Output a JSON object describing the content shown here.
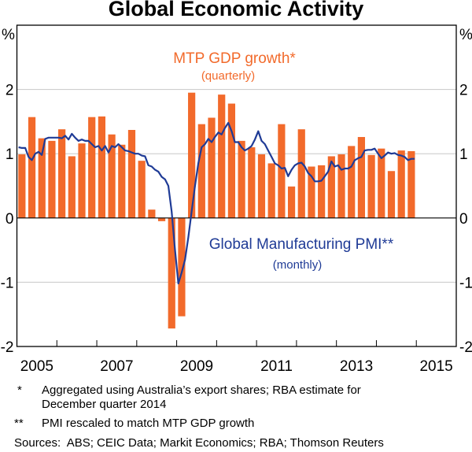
{
  "chart_data": {
    "type": "bar+line",
    "title": "Global Economic Activity",
    "ylabel_left": "%",
    "ylabel_right": "%",
    "ylim": [
      -2,
      3
    ],
    "yticks": [
      "-2",
      "-1",
      "0",
      "1",
      "2"
    ],
    "xlim": [
      2005,
      2016
    ],
    "xticklabels": [
      "2005",
      "2007",
      "2009",
      "2011",
      "2013",
      "2015"
    ],
    "grid": true,
    "colors": {
      "bars": "#F26A2B",
      "line": "#1F3B96",
      "annotation_bars": "#F26A2B",
      "annotation_line": "#1F3B96"
    },
    "series": [
      {
        "name": "MTP GDP growth*",
        "subtitle": "(quarterly)",
        "type": "bar",
        "frequency": "quarterly",
        "start": "2005 Q1",
        "values": [
          0.99,
          1.57,
          1.24,
          1.2,
          1.38,
          0.96,
          1.16,
          1.57,
          1.58,
          1.3,
          1.14,
          1.37,
          0.89,
          0.13,
          -0.05,
          -1.72,
          -1.53,
          1.95,
          1.46,
          1.56,
          1.92,
          1.78,
          1.2,
          1.1,
          0.99,
          0.85,
          1.46,
          0.49,
          1.38,
          0.8,
          0.82,
          0.96,
          0.99,
          1.12,
          1.26,
          0.98,
          1.08,
          0.73,
          1.05,
          1.04
        ]
      },
      {
        "name": "Global Manufacturing PMI**",
        "subtitle": "(monthly)",
        "type": "line",
        "frequency": "monthly",
        "start": "2005 Jan",
        "values": [
          1.1,
          1.09,
          1.09,
          0.95,
          0.9,
          1.0,
          1.03,
          0.98,
          1.23,
          1.25,
          1.25,
          1.25,
          1.25,
          1.24,
          1.28,
          1.22,
          1.31,
          1.25,
          1.2,
          1.22,
          1.2,
          1.2,
          1.15,
          1.1,
          1.12,
          1.05,
          1.12,
          1.02,
          1.12,
          1.1,
          1.15,
          1.1,
          1.05,
          1.04,
          1.02,
          1.0,
          1.0,
          0.97,
          0.96,
          0.82,
          0.8,
          0.75,
          0.72,
          0.64,
          0.6,
          0.5,
          0.1,
          -0.5,
          -1.02,
          -0.85,
          -0.65,
          -0.3,
          0.1,
          0.5,
          0.85,
          1.1,
          1.15,
          1.23,
          1.18,
          1.26,
          1.33,
          1.3,
          1.4,
          1.48,
          1.35,
          1.18,
          1.18,
          1.1,
          1.05,
          1.08,
          1.12,
          1.22,
          1.35,
          1.2,
          1.15,
          1.05,
          0.95,
          0.85,
          0.82,
          0.77,
          0.78,
          0.65,
          0.75,
          0.82,
          0.85,
          0.86,
          0.8,
          0.7,
          0.65,
          0.57,
          0.57,
          0.58,
          0.65,
          0.72,
          0.88,
          0.8,
          0.82,
          0.75,
          0.77,
          0.77,
          0.8,
          0.9,
          0.93,
          0.95,
          1.05,
          1.06,
          1.06,
          1.08,
          1.0,
          0.93,
          0.97,
          1.02,
          1.0,
          1.01,
          0.98,
          0.97,
          0.95,
          0.9,
          0.92,
          0.92
        ]
      }
    ]
  },
  "footnotes": [
    {
      "mark": "*",
      "text": "Aggregated using Australia’s export shares; RBA estimate for",
      "text2": "December quarter 2014"
    },
    {
      "mark": "**",
      "text": "PMI rescaled to match MTP GDP growth"
    }
  ],
  "sources": "Sources:  ABS; CEIC Data; Markit Economics; RBA; Thomson Reuters"
}
